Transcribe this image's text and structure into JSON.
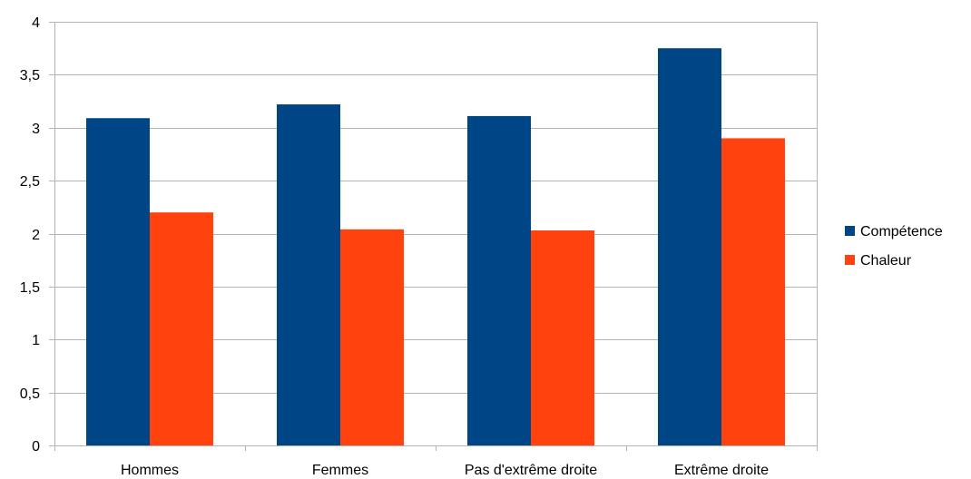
{
  "chart_data": {
    "type": "bar",
    "categories": [
      "Hommes",
      "Femmes",
      "Pas d'extrême droite",
      "Extrême droite"
    ],
    "series": [
      {
        "name": "Compétence",
        "values": [
          3.09,
          3.22,
          3.11,
          3.75
        ],
        "color": "#004586"
      },
      {
        "name": "Chaleur",
        "values": [
          2.2,
          2.04,
          2.03,
          2.9
        ],
        "color": "#ff420e"
      }
    ],
    "ylim": [
      0,
      4
    ],
    "y_ticks": [
      0,
      0.5,
      1,
      1.5,
      2,
      2.5,
      3,
      3.5,
      4
    ],
    "y_tick_labels": [
      "0",
      "0,5",
      "1",
      "1,5",
      "2",
      "2,5",
      "3",
      "3,5",
      "4"
    ],
    "grid": true,
    "legend_position": "right",
    "title": "",
    "xlabel": "",
    "ylabel": ""
  }
}
